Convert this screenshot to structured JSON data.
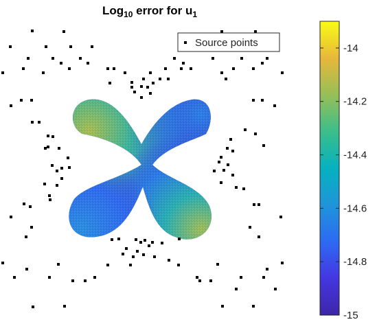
{
  "chart_data": {
    "type": "scatter",
    "title_parts": {
      "main": "Log",
      "sub": "10",
      "mid": " error for u",
      "sub2": "1"
    },
    "legend": {
      "position": "top-right",
      "entries": [
        "Source points"
      ]
    },
    "colorbar": {
      "range": [
        -15,
        -13.9
      ],
      "ticks": [
        -14,
        -14.2,
        -14.4,
        -14.6,
        -14.8,
        -15
      ],
      "tick_labels": [
        "-14",
        "-14.2",
        "-14.4",
        "-14.6",
        "-14.8",
        "-15"
      ],
      "colormap": "parula"
    },
    "domain": {
      "shape": "four-lobed flower (rotated 45°)",
      "value_range": [
        -15,
        -14.2
      ]
    },
    "series": [
      {
        "name": "Source points",
        "marker": "square",
        "color": "#000000",
        "points": [
          [
            47,
            45
          ],
          [
            93,
            46
          ],
          [
            323,
            46
          ],
          [
            372,
            46
          ],
          [
            15,
            68
          ],
          [
            67,
            68
          ],
          [
            103,
            68
          ],
          [
            134,
            68
          ],
          [
            288,
            68
          ],
          [
            338,
            68
          ],
          [
            404,
            68
          ],
          [
            41,
            85
          ],
          [
            77,
            85
          ],
          [
            117,
            85
          ],
          [
            254,
            85
          ],
          [
            310,
            85
          ],
          [
            352,
            85
          ],
          [
            389,
            85
          ],
          [
            89,
            92
          ],
          [
            128,
            92
          ],
          [
            267,
            92
          ],
          [
            382,
            92
          ],
          [
            34,
            100
          ],
          [
            101,
            100
          ],
          [
            157,
            100
          ],
          [
            166,
            100
          ],
          [
            241,
            100
          ],
          [
            264,
            100
          ],
          [
            278,
            100
          ],
          [
            340,
            100
          ],
          [
            369,
            100
          ],
          [
            4,
            106
          ],
          [
            63,
            106
          ],
          [
            182,
            106
          ],
          [
            219,
            106
          ],
          [
            323,
            106
          ],
          [
            411,
            106
          ],
          [
            209,
            115
          ],
          [
            245,
            115
          ],
          [
            329,
            115
          ],
          [
            192,
            120
          ],
          [
            160,
            121
          ],
          [
            223,
            121
          ],
          [
            233,
            115
          ],
          [
            192,
            127
          ],
          [
            206,
            126
          ],
          [
            215,
            127
          ],
          [
            219,
            136
          ],
          [
            206,
            142
          ],
          [
            196,
            134
          ],
          [
            31,
            146
          ],
          [
            46,
            146
          ],
          [
            382,
            146
          ],
          [
            369,
            146
          ],
          [
            16,
            154
          ],
          [
            400,
            154
          ],
          [
            47,
            178
          ],
          [
            57,
            178
          ],
          [
            70,
            198
          ],
          [
            77,
            199
          ],
          [
            66,
            216
          ],
          [
            70,
            214
          ],
          [
            86,
            216
          ],
          [
            99,
            230
          ],
          [
            76,
            241
          ],
          [
            90,
            245
          ],
          [
            83,
            249
          ],
          [
            101,
            244
          ],
          [
            90,
            260
          ],
          [
            65,
            268
          ],
          [
            83,
            270
          ],
          [
            72,
            285
          ],
          [
            73,
            291
          ],
          [
            44,
            301
          ],
          [
            35,
            297
          ],
          [
            331,
            216
          ],
          [
            322,
            229
          ],
          [
            319,
            236
          ],
          [
            332,
            240
          ],
          [
            312,
            249
          ],
          [
            326,
            248
          ],
          [
            339,
            255
          ],
          [
            322,
            266
          ],
          [
            344,
            273
          ],
          [
            355,
            275
          ],
          [
            370,
            298
          ],
          [
            377,
            298
          ],
          [
            357,
            189
          ],
          [
            372,
            195
          ],
          [
            384,
            212
          ],
          [
            336,
            203
          ],
          [
            339,
            220
          ],
          [
            16,
            316
          ],
          [
            409,
            316
          ],
          [
            38,
            345
          ],
          [
            377,
            345
          ],
          [
            46,
            331
          ],
          [
            364,
            331
          ],
          [
            163,
            349
          ],
          [
            173,
            348
          ],
          [
            198,
            349
          ],
          [
            211,
            350
          ],
          [
            222,
            353
          ],
          [
            236,
            354
          ],
          [
            261,
            348
          ],
          [
            205,
            353
          ],
          [
            217,
            358
          ],
          [
            184,
            362
          ],
          [
            179,
            370
          ],
          [
            194,
            374
          ],
          [
            200,
            366
          ],
          [
            209,
            371
          ],
          [
            225,
            374
          ],
          [
            246,
            379
          ],
          [
            4,
            383
          ],
          [
            85,
            385
          ],
          [
            157,
            386
          ],
          [
            190,
            386
          ],
          [
            260,
            386
          ],
          [
            317,
            385
          ],
          [
            411,
            383
          ],
          [
            39,
            392
          ],
          [
            389,
            392
          ],
          [
            21,
            404
          ],
          [
            72,
            404
          ],
          [
            138,
            404
          ],
          [
            287,
            404
          ],
          [
            351,
            404
          ],
          [
            384,
            404
          ],
          [
            106,
            409
          ],
          [
            124,
            409
          ],
          [
            291,
            409
          ],
          [
            307,
            409
          ],
          [
            48,
            447
          ],
          [
            94,
            446
          ],
          [
            324,
            446
          ],
          [
            369,
            446
          ],
          [
            344,
            421
          ],
          [
            401,
            421
          ]
        ]
      }
    ]
  }
}
